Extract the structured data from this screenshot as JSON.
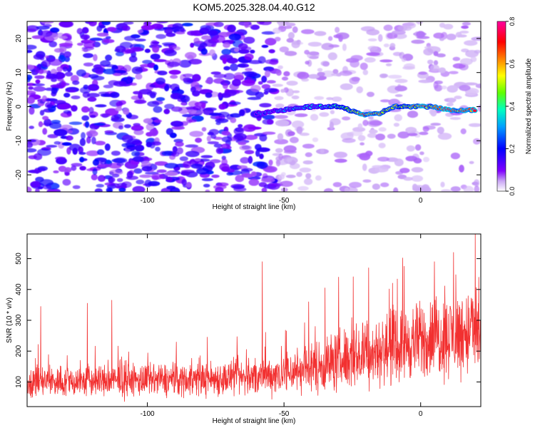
{
  "title": "KOM5.2025.328.04.40.G12",
  "chart_data": [
    {
      "type": "heatmap",
      "name": "spectrogram",
      "xlabel": "Height of straight line (km)",
      "ylabel": "Frequency (Hz)",
      "xlim": [
        -144,
        22
      ],
      "ylim": [
        -25,
        25
      ],
      "xticks": [
        -100,
        -50,
        0
      ],
      "xtick_labels": [
        "-100",
        "-50",
        "0"
      ],
      "yticks": [
        20,
        10,
        0,
        -10,
        -20
      ],
      "ytick_labels": [
        "20",
        "10",
        "0",
        "-10",
        "-20"
      ],
      "colorbar": {
        "label": "Normalized spectral amplitude",
        "range": [
          0.0,
          0.8
        ],
        "ticks": [
          0.0,
          0.2,
          0.4,
          0.6,
          0.8
        ],
        "tick_labels": [
          "0.0",
          "0.2",
          "0.4",
          "0.6",
          "0.8"
        ]
      },
      "signal_track": {
        "description": "narrow high-amplitude line near 0 Hz for heights above about -40 km",
        "x": [
          -60,
          -50,
          -40,
          -30,
          -20,
          -15,
          -10,
          -5,
          0,
          5,
          10,
          15,
          20
        ],
        "frequency": [
          -2,
          -1,
          0,
          0,
          -2.5,
          -2,
          0,
          0,
          0,
          0,
          -1,
          -1,
          -1
        ],
        "amplitude": [
          0.25,
          0.3,
          0.35,
          0.45,
          0.7,
          0.6,
          0.55,
          0.55,
          0.7,
          0.6,
          0.75,
          0.65,
          0.8
        ]
      }
    },
    {
      "type": "line",
      "name": "snr",
      "xlabel": "Height of straight line (km)",
      "ylabel": "SNR (10 * v/v)",
      "xlim": [
        -144,
        22
      ],
      "ylim": [
        20,
        580
      ],
      "xticks": [
        -100,
        -50,
        0
      ],
      "xtick_labels": [
        "-100",
        "-50",
        "0"
      ],
      "yticks": [
        100,
        200,
        300,
        400,
        500
      ],
      "ytick_labels": [
        "100",
        "200",
        "300",
        "400",
        "500"
      ],
      "line_color": "#f23030",
      "trend": {
        "x": [
          -144,
          -100,
          -60,
          -40,
          -30,
          -10,
          0,
          10,
          20
        ],
        "mean": [
          100,
          105,
          115,
          145,
          170,
          210,
          235,
          250,
          265
        ],
        "noise_amplitude": [
          45,
          45,
          50,
          70,
          85,
          95,
          105,
          115,
          125
        ]
      },
      "peaks": [
        {
          "x": -139,
          "y": 345
        },
        {
          "x": -122,
          "y": 355
        },
        {
          "x": -113,
          "y": 365
        },
        {
          "x": -58,
          "y": 490
        },
        {
          "x": -41,
          "y": 360
        },
        {
          "x": -35,
          "y": 405
        },
        {
          "x": -30,
          "y": 440
        },
        {
          "x": -19,
          "y": 470
        },
        {
          "x": -6,
          "y": 475
        },
        {
          "x": 5,
          "y": 490
        },
        {
          "x": 12,
          "y": 520
        },
        {
          "x": 20,
          "y": 580
        }
      ]
    }
  ]
}
